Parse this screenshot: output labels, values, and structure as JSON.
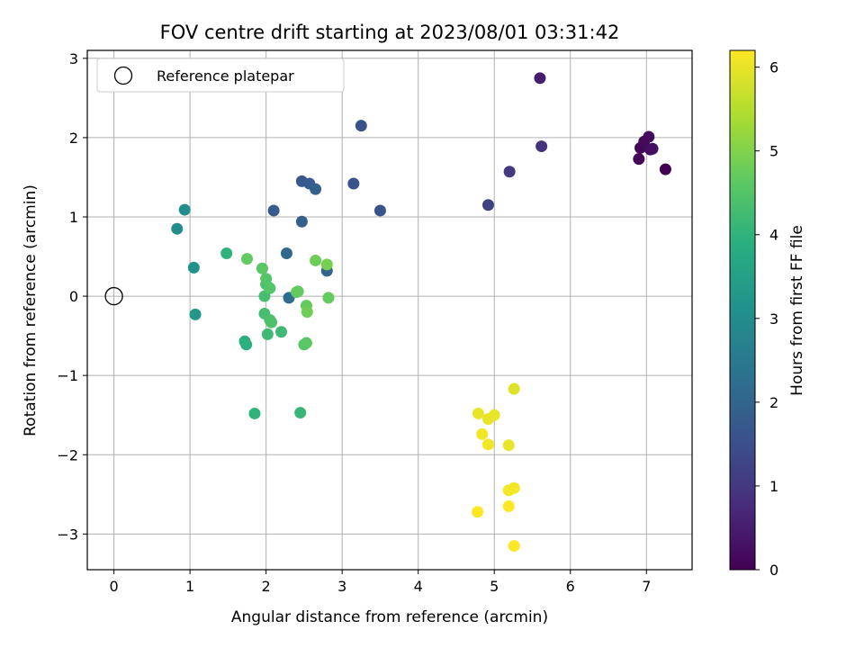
{
  "chart_data": {
    "type": "scatter",
    "title": "FOV centre drift starting at 2023/08/01 03:31:42",
    "xlabel": "Angular distance from reference (arcmin)",
    "ylabel": "Rotation from reference (arcmin)",
    "xlim": [
      -0.35,
      7.6
    ],
    "ylim": [
      -3.45,
      3.1
    ],
    "xticks": [
      0,
      1,
      2,
      3,
      4,
      5,
      6,
      7
    ],
    "yticks": [
      -3,
      -2,
      -1,
      0,
      1,
      2,
      3
    ],
    "grid": true,
    "legend": {
      "position": "top-left",
      "entries": [
        "Reference platepar"
      ]
    },
    "reference_point": {
      "name": "Reference platepar",
      "x": 0,
      "y": 0
    },
    "colorbar": {
      "label": "Hours from first FF file",
      "range": [
        0,
        6.2
      ],
      "ticks": [
        0,
        1,
        2,
        3,
        4,
        5,
        6
      ],
      "colormap": "viridis"
    },
    "points": [
      {
        "x": 7.25,
        "y": 1.6,
        "c": 0.0
      },
      {
        "x": 6.9,
        "y": 1.73,
        "c": 0.05
      },
      {
        "x": 6.92,
        "y": 1.87,
        "c": 0.1
      },
      {
        "x": 6.97,
        "y": 1.95,
        "c": 0.15
      },
      {
        "x": 7.03,
        "y": 2.01,
        "c": 0.2
      },
      {
        "x": 7.08,
        "y": 1.86,
        "c": 0.3
      },
      {
        "x": 7.05,
        "y": 1.85,
        "c": 0.25
      },
      {
        "x": 5.6,
        "y": 2.75,
        "c": 0.5
      },
      {
        "x": 5.62,
        "y": 1.89,
        "c": 0.9
      },
      {
        "x": 5.2,
        "y": 1.57,
        "c": 1.0
      },
      {
        "x": 4.92,
        "y": 1.15,
        "c": 1.2
      },
      {
        "x": 3.25,
        "y": 2.15,
        "c": 1.5
      },
      {
        "x": 3.5,
        "y": 1.08,
        "c": 1.6
      },
      {
        "x": 3.15,
        "y": 1.42,
        "c": 1.6
      },
      {
        "x": 2.47,
        "y": 1.45,
        "c": 1.7
      },
      {
        "x": 2.57,
        "y": 1.42,
        "c": 1.8
      },
      {
        "x": 2.65,
        "y": 1.35,
        "c": 1.9
      },
      {
        "x": 2.1,
        "y": 1.08,
        "c": 1.8
      },
      {
        "x": 2.47,
        "y": 0.94,
        "c": 1.9
      },
      {
        "x": 2.8,
        "y": 0.32,
        "c": 2.0
      },
      {
        "x": 2.27,
        "y": 0.54,
        "c": 2.1
      },
      {
        "x": 2.3,
        "y": -0.02,
        "c": 2.2
      },
      {
        "x": 0.93,
        "y": 1.09,
        "c": 3.0
      },
      {
        "x": 0.83,
        "y": 0.85,
        "c": 3.0
      },
      {
        "x": 1.05,
        "y": 0.36,
        "c": 3.1
      },
      {
        "x": 1.07,
        "y": -0.23,
        "c": 3.3
      },
      {
        "x": 1.48,
        "y": 0.54,
        "c": 4.0
      },
      {
        "x": 1.72,
        "y": -0.57,
        "c": 3.9
      },
      {
        "x": 1.74,
        "y": -0.61,
        "c": 3.9
      },
      {
        "x": 1.85,
        "y": -1.48,
        "c": 4.0
      },
      {
        "x": 2.45,
        "y": -1.47,
        "c": 4.1
      },
      {
        "x": 2.2,
        "y": -0.45,
        "c": 4.2
      },
      {
        "x": 2.02,
        "y": -0.48,
        "c": 4.2
      },
      {
        "x": 1.98,
        "y": -0.22,
        "c": 4.3
      },
      {
        "x": 2.05,
        "y": -0.3,
        "c": 4.4
      },
      {
        "x": 2.07,
        "y": -0.33,
        "c": 4.4
      },
      {
        "x": 1.98,
        "y": 0.0,
        "c": 4.3
      },
      {
        "x": 2.0,
        "y": 0.15,
        "c": 4.4
      },
      {
        "x": 2.05,
        "y": 0.1,
        "c": 4.5
      },
      {
        "x": 2.0,
        "y": 0.22,
        "c": 4.5
      },
      {
        "x": 1.95,
        "y": 0.35,
        "c": 4.6
      },
      {
        "x": 1.75,
        "y": 0.47,
        "c": 4.7
      },
      {
        "x": 2.4,
        "y": 0.05,
        "c": 4.7
      },
      {
        "x": 2.42,
        "y": 0.06,
        "c": 4.7
      },
      {
        "x": 2.5,
        "y": -0.61,
        "c": 4.5
      },
      {
        "x": 2.53,
        "y": -0.59,
        "c": 4.6
      },
      {
        "x": 2.53,
        "y": -0.12,
        "c": 4.7
      },
      {
        "x": 2.54,
        "y": -0.2,
        "c": 4.8
      },
      {
        "x": 2.65,
        "y": 0.45,
        "c": 4.8
      },
      {
        "x": 2.82,
        "y": -0.02,
        "c": 4.7
      },
      {
        "x": 2.8,
        "y": 0.4,
        "c": 4.9
      },
      {
        "x": 5.26,
        "y": -1.17,
        "c": 5.9
      },
      {
        "x": 4.79,
        "y": -1.48,
        "c": 6.0
      },
      {
        "x": 4.92,
        "y": -1.55,
        "c": 6.0
      },
      {
        "x": 5.0,
        "y": -1.5,
        "c": 6.0
      },
      {
        "x": 4.84,
        "y": -1.74,
        "c": 6.1
      },
      {
        "x": 4.92,
        "y": -1.87,
        "c": 6.1
      },
      {
        "x": 5.19,
        "y": -1.88,
        "c": 6.0
      },
      {
        "x": 5.19,
        "y": -2.45,
        "c": 6.1
      },
      {
        "x": 5.26,
        "y": -2.42,
        "c": 6.1
      },
      {
        "x": 5.19,
        "y": -2.65,
        "c": 6.2
      },
      {
        "x": 4.78,
        "y": -2.72,
        "c": 6.2
      },
      {
        "x": 5.26,
        "y": -3.15,
        "c": 6.2
      }
    ]
  }
}
